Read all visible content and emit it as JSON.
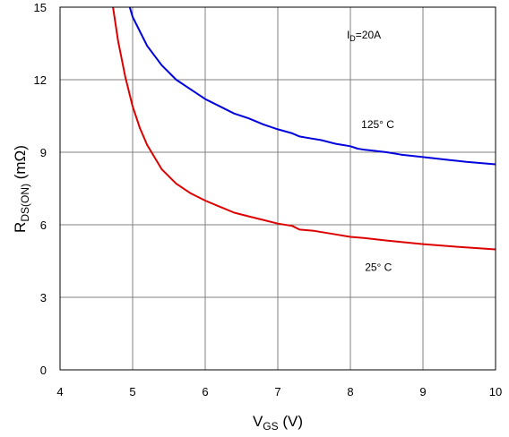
{
  "chart_data": {
    "type": "line",
    "xlabel": {
      "main": "V",
      "sub": "GS",
      "suffix": " (V)"
    },
    "ylabel": {
      "main": "R",
      "sub": "DS(ON)",
      "suffix": " (mΩ)"
    },
    "xlim": [
      4,
      10
    ],
    "ylim": [
      0,
      15
    ],
    "x_ticks": [
      4,
      5,
      6,
      7,
      8,
      9,
      10
    ],
    "x_tick_labels": [
      "4",
      "5",
      "6",
      "7",
      "8",
      "9",
      "10"
    ],
    "y_ticks": [
      0,
      3,
      6,
      9,
      12,
      15
    ],
    "y_tick_labels": [
      "0",
      "3",
      "6",
      "9",
      "12",
      "15"
    ],
    "grid": true,
    "series": [
      {
        "name": "125° C",
        "color": "#0000dd",
        "x": [
          4.96,
          5.0,
          5.2,
          5.4,
          5.6,
          5.8,
          6.0,
          6.2,
          6.4,
          6.6,
          6.8,
          7.0,
          7.2,
          7.3,
          7.4,
          7.6,
          7.8,
          8.0,
          8.1,
          8.2,
          8.3,
          8.5,
          8.7,
          9.0,
          9.3,
          9.6,
          10.0
        ],
        "y": [
          15.0,
          14.6,
          13.4,
          12.6,
          12.0,
          11.6,
          11.2,
          10.9,
          10.6,
          10.4,
          10.15,
          9.95,
          9.78,
          9.65,
          9.6,
          9.5,
          9.35,
          9.25,
          9.15,
          9.1,
          9.07,
          9.0,
          8.9,
          8.8,
          8.7,
          8.6,
          8.5
        ]
      },
      {
        "name": "25° C",
        "color": "#dd0000",
        "x": [
          4.73,
          4.8,
          4.9,
          5.0,
          5.1,
          5.2,
          5.4,
          5.6,
          5.8,
          6.0,
          6.2,
          6.4,
          6.6,
          6.8,
          7.0,
          7.2,
          7.3,
          7.5,
          7.8,
          8.0,
          8.2,
          8.5,
          9.0,
          9.5,
          10.0
        ],
        "y": [
          15.0,
          13.6,
          12.1,
          10.9,
          10.0,
          9.3,
          8.3,
          7.7,
          7.3,
          7.0,
          6.75,
          6.5,
          6.35,
          6.2,
          6.05,
          5.95,
          5.8,
          5.75,
          5.6,
          5.5,
          5.45,
          5.35,
          5.2,
          5.08,
          4.98
        ]
      }
    ],
    "annotations": [
      {
        "kind": "subscripted",
        "main": "I",
        "sub": "D",
        "suffix": "=20A",
        "x": 7.95,
        "y": 13.7
      },
      {
        "kind": "plain",
        "text": "125° C",
        "x": 8.15,
        "y": 10.0
      },
      {
        "kind": "plain",
        "text": "25° C",
        "x": 8.2,
        "y": 4.1
      }
    ]
  }
}
